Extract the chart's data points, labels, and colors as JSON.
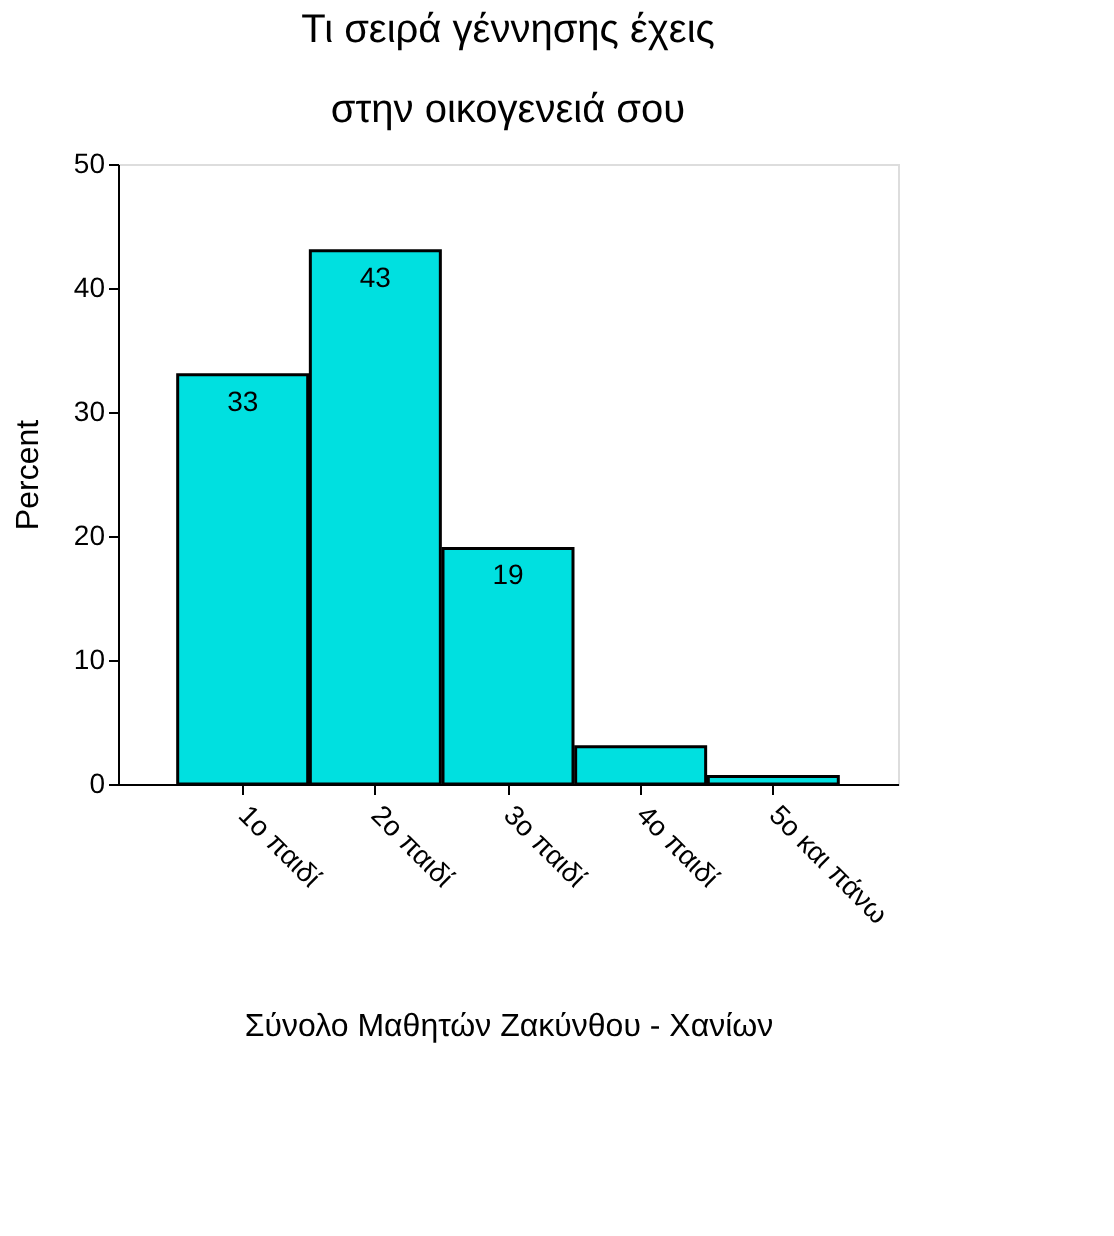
{
  "chart_data": {
    "type": "bar",
    "title": [
      "Τι σειρά γέννησης έχεις",
      "στην οικογενειά σου"
    ],
    "xlabel": "Σύνολο Μαθητών Ζακύνθου - Χανίων",
    "ylabel": "Percent",
    "categories": [
      "1ο παιδί",
      "2ο παιδί",
      "3ο παιδί",
      "4ο παιδί",
      "5ο και πάνω"
    ],
    "values": [
      33,
      43,
      19,
      3.0,
      0.6
    ],
    "value_labels": [
      "33",
      "43",
      "19",
      null,
      null
    ],
    "color": "#00e0e0",
    "ylim": [
      0,
      50
    ],
    "yticks": [
      0,
      10,
      20,
      30,
      40,
      50
    ],
    "grid": false
  }
}
